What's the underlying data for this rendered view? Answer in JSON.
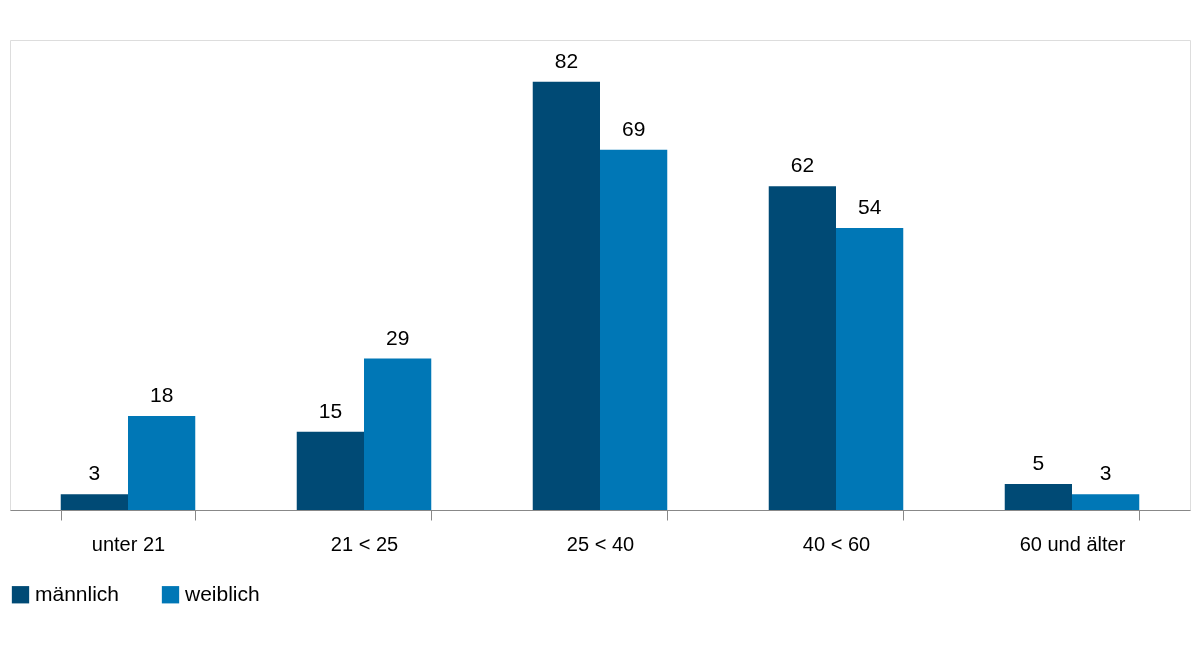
{
  "chart_data": {
    "type": "bar",
    "categories": [
      "unter 21",
      "21 < 25",
      "25 < 40",
      "40 < 60",
      "60 und älter"
    ],
    "series": [
      {
        "name": "männlich",
        "color": "#004a75",
        "values": [
          3,
          15,
          82,
          62,
          5
        ]
      },
      {
        "name": "weiblich",
        "color": "#0077b6",
        "values": [
          18,
          29,
          69,
          54,
          3
        ]
      }
    ],
    "data_labels": true,
    "legend": "bottom",
    "grid": false,
    "tick_labels": "x"
  }
}
